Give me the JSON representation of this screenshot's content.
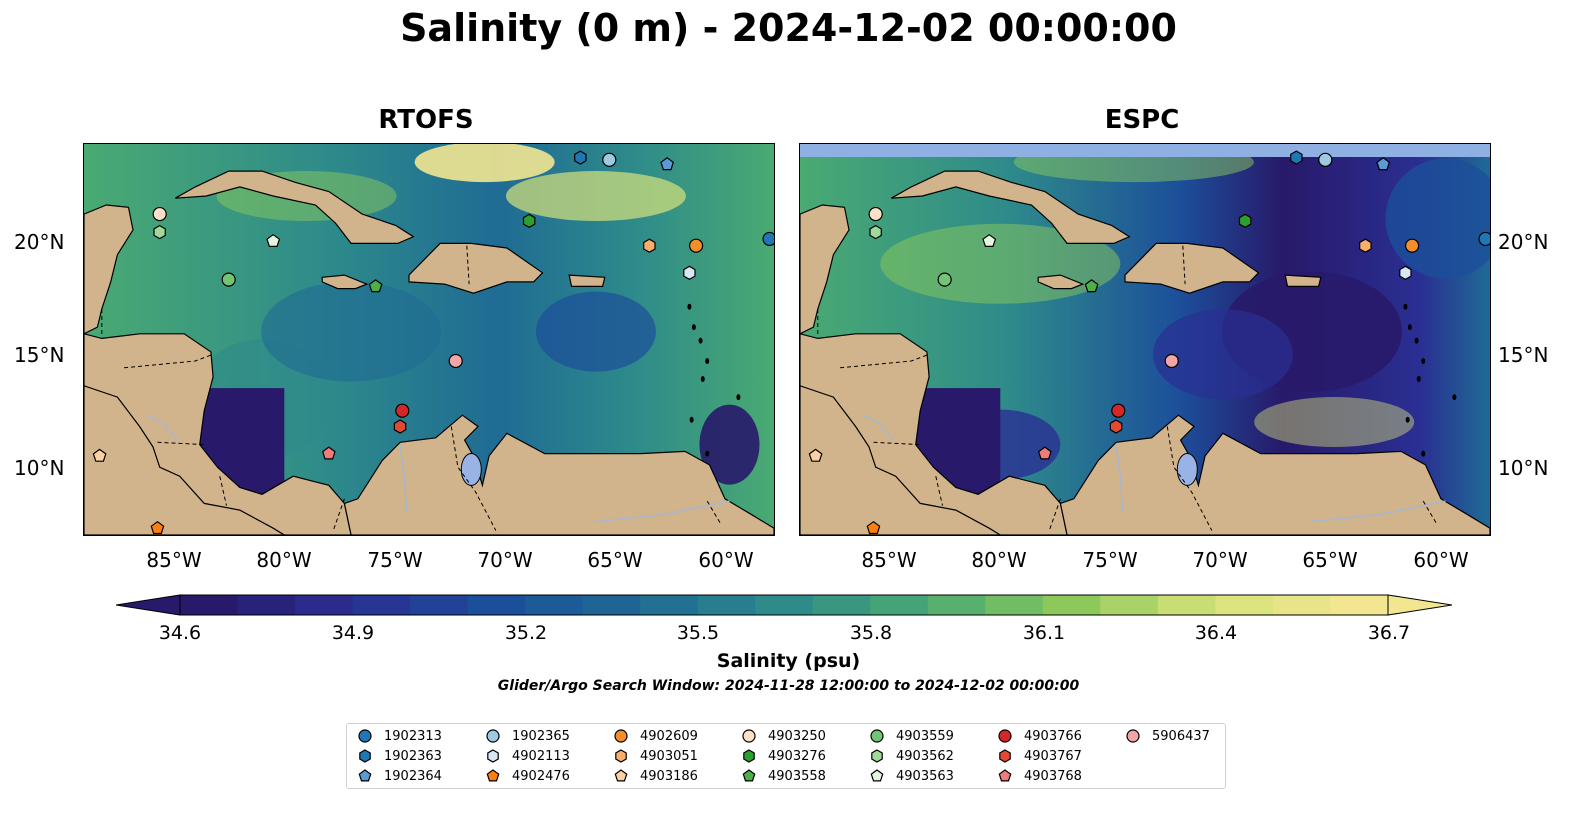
{
  "title": "Salinity (0 m) - 2024-12-02 00:00:00",
  "panels": [
    {
      "name": "RTOFS"
    },
    {
      "name": "ESPC"
    }
  ],
  "lat_ticks": [
    "20°N",
    "15°N",
    "10°N"
  ],
  "lon_ticks": [
    "85°W",
    "80°W",
    "75°W",
    "70°W",
    "65°W",
    "60°W"
  ],
  "colorbar": {
    "label": "Salinity (psu)",
    "min": 34.6,
    "max": 36.7,
    "ticks": [
      "34.6",
      "34.9",
      "35.2",
      "35.5",
      "35.8",
      "36.1",
      "36.4",
      "36.7"
    ],
    "colormap": [
      "#28196a",
      "#2a2f93",
      "#1c4f9a",
      "#1f6b94",
      "#2e8b8a",
      "#4aaa72",
      "#8cc95a",
      "#d7e37a",
      "#f2e691"
    ],
    "extend": "both"
  },
  "search_window": "Glider/Argo Search Window: 2024-11-28 12:00:00 to 2024-12-02 00:00:00",
  "colors": {
    "land": "#d2b48c",
    "lakes": "#99b3e6",
    "rivers": "#a7b8cc",
    "ocean_low": "#28196a",
    "ocean_mid": "#3b8f86",
    "ocean_high": "#f2e691",
    "espc_fill_band": "#8fb0e2"
  },
  "legend": [
    {
      "id": "1902313",
      "marker": "circle",
      "color": "#1f77b4"
    },
    {
      "id": "1902363",
      "marker": "hexagon",
      "color": "#1f77b4"
    },
    {
      "id": "1902364",
      "marker": "pentagon",
      "color": "#5a9bd6"
    },
    {
      "id": "1902365",
      "marker": "circle",
      "color": "#9ecae1"
    },
    {
      "id": "4902113",
      "marker": "hexagon",
      "color": "#d6e8f5"
    },
    {
      "id": "4902476",
      "marker": "pentagon",
      "color": "#ff7f0e"
    },
    {
      "id": "4902609",
      "marker": "circle",
      "color": "#f28e2b"
    },
    {
      "id": "4903051",
      "marker": "hexagon",
      "color": "#fdae6b"
    },
    {
      "id": "4903186",
      "marker": "pentagon",
      "color": "#fdd0a2"
    },
    {
      "id": "4903250",
      "marker": "circle",
      "color": "#fde0c5"
    },
    {
      "id": "4903276",
      "marker": "hexagon",
      "color": "#2ca02c"
    },
    {
      "id": "4903558",
      "marker": "pentagon",
      "color": "#4daf4a"
    },
    {
      "id": "4903559",
      "marker": "circle",
      "color": "#74c476"
    },
    {
      "id": "4903562",
      "marker": "hexagon",
      "color": "#a1d99b"
    },
    {
      "id": "4903563",
      "marker": "pentagon",
      "color": "#e5f5e0"
    },
    {
      "id": "4903766",
      "marker": "circle",
      "color": "#d62728"
    },
    {
      "id": "4903767",
      "marker": "hexagon",
      "color": "#e34a33"
    },
    {
      "id": "4903768",
      "marker": "pentagon",
      "color": "#ef7b7b"
    },
    {
      "id": "5906437",
      "marker": "circle",
      "color": "#f4a6a6"
    }
  ],
  "floats": [
    {
      "id": "1902313",
      "lon": -58.2,
      "lat": 20.1
    },
    {
      "id": "1902363",
      "lon": -66.7,
      "lat": 23.7
    },
    {
      "id": "1902365",
      "lon": -65.4,
      "lat": 23.6
    },
    {
      "id": "1902364",
      "lon": -62.8,
      "lat": 23.4
    },
    {
      "id": "4903250",
      "lon": -85.6,
      "lat": 21.2
    },
    {
      "id": "4903562",
      "lon": -85.6,
      "lat": 20.4
    },
    {
      "id": "4903563",
      "lon": -80.5,
      "lat": 20.0
    },
    {
      "id": "4903276",
      "lon": -69.0,
      "lat": 20.9
    },
    {
      "id": "4903051",
      "lon": -63.6,
      "lat": 19.8
    },
    {
      "id": "4902609",
      "lon": -61.5,
      "lat": 19.8
    },
    {
      "id": "4902113",
      "lon": -61.8,
      "lat": 18.6
    },
    {
      "id": "4903559",
      "lon": -82.5,
      "lat": 18.3
    },
    {
      "id": "4903558",
      "lon": -75.9,
      "lat": 18.0
    },
    {
      "id": "5906437",
      "lon": -72.3,
      "lat": 14.7
    },
    {
      "id": "4903766",
      "lon": -74.7,
      "lat": 12.5
    },
    {
      "id": "4903767",
      "lon": -74.8,
      "lat": 11.8
    },
    {
      "id": "4903768",
      "lon": -78.0,
      "lat": 10.6
    },
    {
      "id": "4903186",
      "lon": -88.3,
      "lat": 10.5
    },
    {
      "id": "4902476",
      "lon": -85.7,
      "lat": 7.3
    }
  ]
}
